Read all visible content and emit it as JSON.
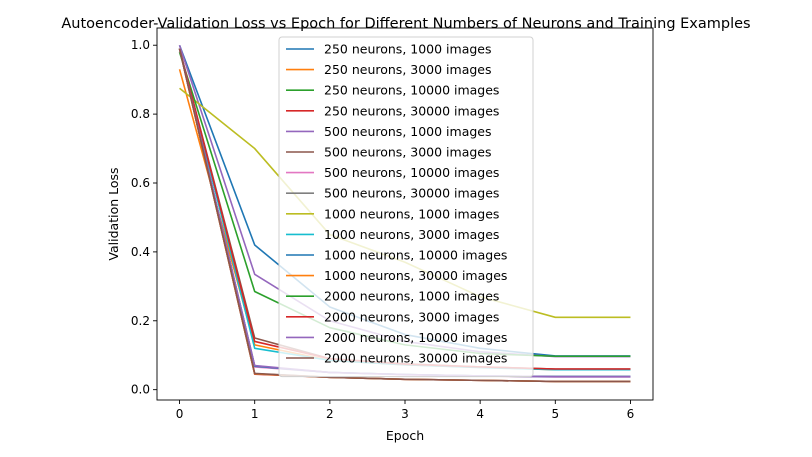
{
  "chart_data": {
    "type": "line",
    "title": "Autoencoder-Validation Loss vs Epoch for Different Numbers of Neurons and Training Examples",
    "xlabel": "Epoch",
    "ylabel": "Validation Loss",
    "xlim": [
      -0.3,
      6.3
    ],
    "ylim": [
      -0.03,
      1.05
    ],
    "xticks": [
      0,
      1,
      2,
      3,
      4,
      5,
      6
    ],
    "yticks": [
      0.0,
      0.2,
      0.4,
      0.6,
      0.8,
      1.0
    ],
    "ytick_labels": [
      "0.0",
      "0.2",
      "0.4",
      "0.6",
      "0.8",
      "1.0"
    ],
    "grid": false,
    "legend_position": "top-center",
    "x": [
      0,
      1,
      2,
      3,
      4,
      5,
      6
    ],
    "series": [
      {
        "name": "250 neurons, 1000 images",
        "color": "#1f77b4",
        "values": [
          1.0,
          0.42,
          0.24,
          0.16,
          0.12,
          0.098,
          0.098
        ]
      },
      {
        "name": "250 neurons, 3000 images",
        "color": "#ff7f0e",
        "values": [
          0.93,
          0.13,
          0.085,
          0.072,
          0.065,
          0.058,
          0.058
        ]
      },
      {
        "name": "250 neurons, 10000 images",
        "color": "#2ca02c",
        "values": [
          0.99,
          0.068,
          0.05,
          0.044,
          0.04,
          0.038,
          0.038
        ]
      },
      {
        "name": "250 neurons, 30000 images",
        "color": "#d62728",
        "values": [
          0.99,
          0.045,
          0.036,
          0.03,
          0.027,
          0.024,
          0.024
        ]
      },
      {
        "name": "500 neurons, 1000 images",
        "color": "#9467bd",
        "values": [
          1.0,
          0.335,
          0.2,
          0.14,
          0.11,
          0.096,
          0.096
        ]
      },
      {
        "name": "500 neurons, 3000 images",
        "color": "#8c564b",
        "values": [
          0.99,
          0.15,
          0.09,
          0.075,
          0.066,
          0.06,
          0.06
        ]
      },
      {
        "name": "500 neurons, 10000 images",
        "color": "#e377c2",
        "values": [
          0.99,
          0.066,
          0.05,
          0.043,
          0.04,
          0.037,
          0.037
        ]
      },
      {
        "name": "500 neurons, 30000 images",
        "color": "#7f7f7f",
        "values": [
          0.99,
          0.046,
          0.036,
          0.03,
          0.027,
          0.024,
          0.024
        ]
      },
      {
        "name": "1000 neurons, 1000 images",
        "color": "#bcbd22",
        "values": [
          0.875,
          0.7,
          0.45,
          0.37,
          0.27,
          0.21,
          0.21
        ]
      },
      {
        "name": "1000 neurons, 3000 images",
        "color": "#17becf",
        "values": [
          0.99,
          0.12,
          0.085,
          0.072,
          0.064,
          0.058,
          0.058
        ]
      },
      {
        "name": "1000 neurons, 10000 images",
        "color": "#1f77b4",
        "values": [
          0.99,
          0.068,
          0.05,
          0.044,
          0.04,
          0.038,
          0.038
        ]
      },
      {
        "name": "1000 neurons, 30000 images",
        "color": "#ff7f0e",
        "values": [
          0.99,
          0.046,
          0.036,
          0.03,
          0.027,
          0.024,
          0.024
        ]
      },
      {
        "name": "2000 neurons, 1000 images",
        "color": "#2ca02c",
        "values": [
          0.98,
          0.285,
          0.18,
          0.13,
          0.105,
          0.097,
          0.097
        ]
      },
      {
        "name": "2000 neurons, 3000 images",
        "color": "#d62728",
        "values": [
          0.99,
          0.14,
          0.09,
          0.074,
          0.066,
          0.06,
          0.06
        ]
      },
      {
        "name": "2000 neurons, 10000 images",
        "color": "#9467bd",
        "values": [
          0.99,
          0.07,
          0.05,
          0.044,
          0.04,
          0.038,
          0.038
        ]
      },
      {
        "name": "2000 neurons, 30000 images",
        "color": "#8c564b",
        "values": [
          0.99,
          0.047,
          0.036,
          0.03,
          0.027,
          0.024,
          0.024
        ]
      }
    ]
  }
}
